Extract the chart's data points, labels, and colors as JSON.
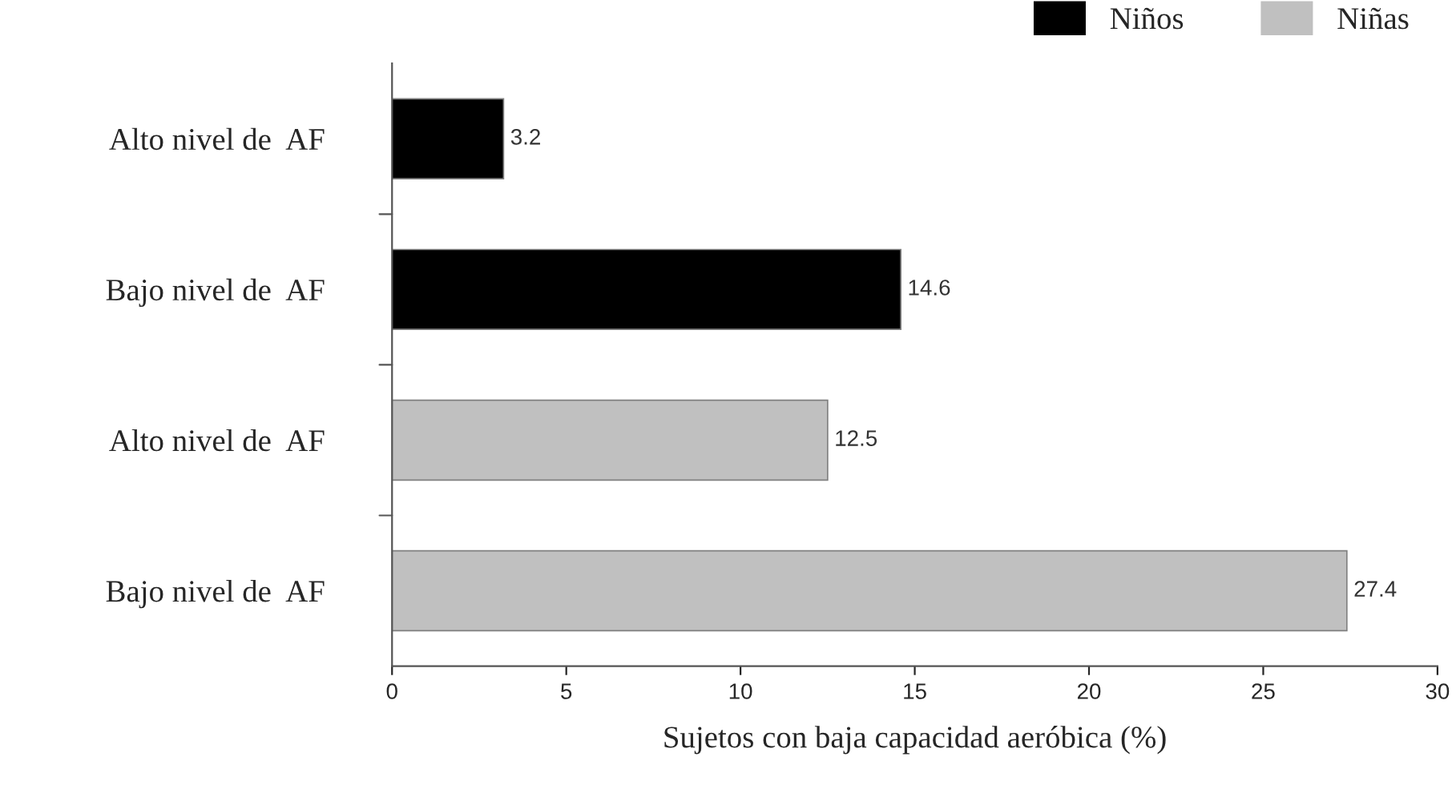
{
  "chart_data": {
    "type": "bar",
    "orientation": "horizontal",
    "categories": [
      "Alto nivel de  AF",
      "Bajo nivel de  AF",
      "Alto nivel de  AF",
      "Bajo nivel de  AF"
    ],
    "series": [
      {
        "name": "Niños",
        "color": "#000000",
        "values": [
          3.2,
          14.6,
          null,
          null
        ]
      },
      {
        "name": "Niñas",
        "color": "#c0c0c0",
        "values": [
          null,
          null,
          12.5,
          27.4
        ]
      }
    ],
    "xlabel": "Sujetos con baja capacidad aeróbica (%)",
    "xlim": [
      0,
      30
    ],
    "xticks": [
      0,
      5,
      10,
      15,
      20,
      25,
      30
    ],
    "data_labels": true,
    "grid": false,
    "legend": "top right"
  }
}
